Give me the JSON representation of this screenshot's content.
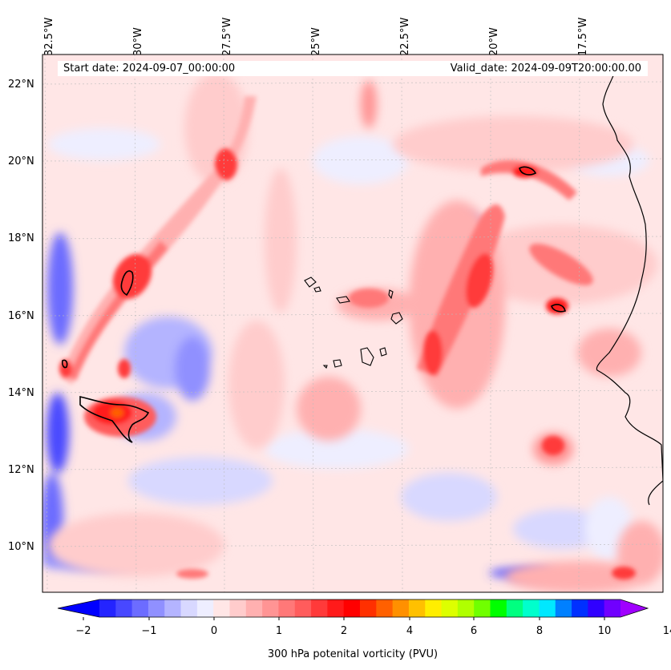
{
  "header": {
    "start_date": "Start date: 2024-09-07_00:00:00",
    "valid_date": "Valid_date: 2024-09-09T20:00:00.00"
  },
  "axes": {
    "lon_labels": [
      "32.5°W",
      "30°W",
      "27.5°W",
      "25°W",
      "22.5°W",
      "20°W",
      "17.5°W"
    ],
    "lat_labels": [
      "22°N",
      "20°N",
      "18°N",
      "16°N",
      "14°N",
      "12°N",
      "10°N"
    ]
  },
  "colorbar": {
    "label": "300 hPa potenital vorticity (PVU)",
    "ticks": [
      "−2",
      "−1",
      "0",
      "1",
      "2",
      "4",
      "6",
      "8",
      "10",
      "14"
    ],
    "colors": [
      "#0000ff",
      "#2424ff",
      "#4848ff",
      "#6c6cff",
      "#9090ff",
      "#b4b4ff",
      "#d8d8ff",
      "#eeeeff",
      "#ffe6e6",
      "#ffcccc",
      "#ffb0b0",
      "#ff9494",
      "#ff7878",
      "#ff5c5c",
      "#ff3a3a",
      "#ff1a1a",
      "#ff0000",
      "#ff3000",
      "#ff6000",
      "#ff9000",
      "#ffc000",
      "#ffee00",
      "#ddff00",
      "#b0ff00",
      "#70ff00",
      "#00ff00",
      "#00ff80",
      "#00ffcc",
      "#00e8ff",
      "#0080ff",
      "#0030ff",
      "#3000ff",
      "#7000ff",
      "#a000ff"
    ]
  }
}
